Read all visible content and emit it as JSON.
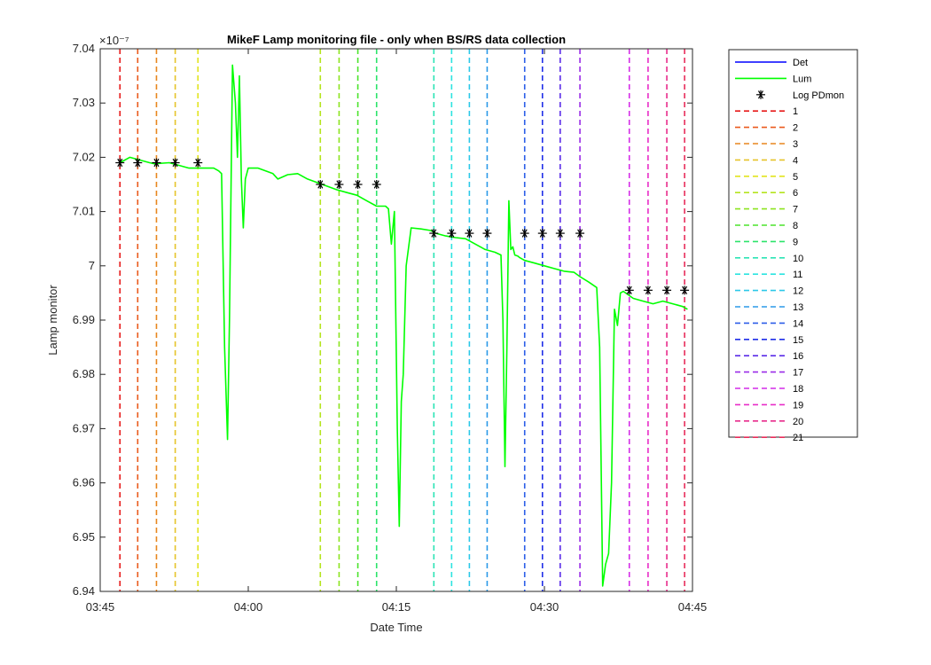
{
  "chart_data": {
    "type": "line",
    "title": "MikeF Lamp monitoring file - only when BS/RS data collection",
    "xlabel": "Date Time",
    "ylabel": "Lamp monitor",
    "exponent_label": "×10⁻⁷",
    "xlim_minutes": [
      225,
      285
    ],
    "ylim": [
      6.94,
      7.04
    ],
    "x_ticks": [
      {
        "value": 225,
        "label": "03:45"
      },
      {
        "value": 240,
        "label": "04:00"
      },
      {
        "value": 255,
        "label": "04:15"
      },
      {
        "value": 270,
        "label": "04:30"
      },
      {
        "value": 285,
        "label": "04:45"
      }
    ],
    "y_ticks": [
      {
        "value": 6.94,
        "label": "6.94"
      },
      {
        "value": 6.95,
        "label": "6.95"
      },
      {
        "value": 6.96,
        "label": "6.96"
      },
      {
        "value": 6.97,
        "label": "6.97"
      },
      {
        "value": 6.98,
        "label": "6.98"
      },
      {
        "value": 6.99,
        "label": "6.99"
      },
      {
        "value": 7.0,
        "label": "7"
      },
      {
        "value": 7.01,
        "label": "7.01"
      },
      {
        "value": 7.02,
        "label": "7.02"
      },
      {
        "value": 7.03,
        "label": "7.03"
      },
      {
        "value": 7.04,
        "label": "7.04"
      }
    ],
    "grid": false,
    "legend_position": "outside-right",
    "series": [
      {
        "name": "Det",
        "color": "#0000ff",
        "x": [],
        "y": []
      },
      {
        "name": "Lum",
        "color": "#00ff00",
        "x": [
          227.0,
          227.5,
          228.0,
          230.0,
          230.5,
          232.0,
          234.0,
          234.5,
          236.5,
          237.0,
          237.3,
          237.6,
          237.9,
          238.1,
          238.4,
          238.7,
          238.9,
          239.1,
          239.3,
          239.5,
          239.7,
          240.0,
          241.0,
          242.5,
          243.0,
          244.0,
          245.0,
          246.0,
          247.5,
          249.0,
          250.0,
          251.0,
          252.0,
          253.0,
          253.9,
          254.2,
          254.5,
          254.8,
          255.1,
          255.3,
          255.5,
          255.7,
          256.0,
          256.5,
          257.5,
          258.5,
          259.0,
          260.0,
          261.0,
          262.0,
          263.0,
          264.0,
          265.0,
          265.6,
          265.8,
          266.0,
          266.2,
          266.4,
          266.6,
          266.8,
          267.0,
          267.3,
          267.5,
          268.0,
          269.0,
          270.0,
          271.0,
          272.0,
          273.0,
          273.6,
          274.5,
          275.3,
          275.6,
          275.9,
          276.2,
          276.5,
          276.8,
          277.1,
          277.4,
          277.7,
          278.0,
          279.0,
          280.0,
          281.0,
          282.0,
          283.0,
          284.0,
          284.5
        ],
        "y": [
          7.019,
          7.0195,
          7.02,
          7.019,
          7.0188,
          7.019,
          7.018,
          7.018,
          7.018,
          7.0175,
          7.017,
          6.985,
          6.968,
          6.99,
          7.037,
          7.03,
          7.02,
          7.035,
          7.016,
          7.007,
          7.016,
          7.018,
          7.018,
          7.017,
          7.016,
          7.0168,
          7.017,
          7.016,
          7.015,
          7.014,
          7.0135,
          7.013,
          7.012,
          7.011,
          7.011,
          7.0105,
          7.004,
          7.01,
          6.97,
          6.952,
          6.975,
          6.98,
          7.0,
          7.007,
          7.0068,
          7.0065,
          7.006,
          7.0055,
          7.0052,
          7.005,
          7.004,
          7.003,
          7.0025,
          7.002,
          6.99,
          6.963,
          6.985,
          7.012,
          7.003,
          7.0035,
          7.002,
          7.0018,
          7.0015,
          7.001,
          7.0005,
          7.0,
          6.9995,
          6.999,
          6.9988,
          6.998,
          6.997,
          6.996,
          6.985,
          6.941,
          6.945,
          6.947,
          6.96,
          6.992,
          6.989,
          6.995,
          6.9953,
          6.994,
          6.9935,
          6.993,
          6.9935,
          6.993,
          6.9925,
          6.992
        ]
      },
      {
        "name": "Log PDmon",
        "color": "#000000",
        "marker": "*",
        "x": [
          227.0,
          228.8,
          230.7,
          232.6,
          234.9,
          247.3,
          249.2,
          251.1,
          253.0,
          258.8,
          260.6,
          262.4,
          264.2,
          268.0,
          269.8,
          271.6,
          273.6,
          278.6,
          280.5,
          282.4,
          284.2
        ],
        "y": [
          7.019,
          7.019,
          7.019,
          7.019,
          7.019,
          7.015,
          7.015,
          7.015,
          7.015,
          7.006,
          7.006,
          7.006,
          7.006,
          7.006,
          7.006,
          7.006,
          7.006,
          6.9955,
          6.9955,
          6.9955,
          6.9955
        ]
      }
    ],
    "vlines": [
      {
        "name": "1",
        "x": 227.0,
        "color": "#e61919"
      },
      {
        "name": "2",
        "x": 228.8,
        "color": "#ea5a1c"
      },
      {
        "name": "3",
        "x": 230.7,
        "color": "#e8861e"
      },
      {
        "name": "4",
        "x": 232.6,
        "color": "#e6c42a"
      },
      {
        "name": "5",
        "x": 234.9,
        "color": "#e2e41f"
      },
      {
        "name": "6",
        "x": 247.3,
        "color": "#b5e41f"
      },
      {
        "name": "7",
        "x": 249.2,
        "color": "#8ce41f"
      },
      {
        "name": "8",
        "x": 251.1,
        "color": "#4ce42c"
      },
      {
        "name": "9",
        "x": 253.0,
        "color": "#2ce46a"
      },
      {
        "name": "10",
        "x": 258.8,
        "color": "#2ce4b5"
      },
      {
        "name": "11",
        "x": 260.6,
        "color": "#2ce4e0"
      },
      {
        "name": "12",
        "x": 262.4,
        "color": "#2cc8e8"
      },
      {
        "name": "13",
        "x": 264.2,
        "color": "#2c9ae8"
      },
      {
        "name": "14",
        "x": 268.0,
        "color": "#2c5ee8"
      },
      {
        "name": "15",
        "x": 269.8,
        "color": "#1f2ee8"
      },
      {
        "name": "16",
        "x": 271.6,
        "color": "#5a2ce8"
      },
      {
        "name": "17",
        "x": 273.6,
        "color": "#9a2ce8"
      },
      {
        "name": "18",
        "x": 278.6,
        "color": "#d42ce8"
      },
      {
        "name": "19",
        "x": 280.5,
        "color": "#e82cc8"
      },
      {
        "name": "20",
        "x": 282.4,
        "color": "#e82c8c"
      },
      {
        "name": "21",
        "x": 284.2,
        "color": "#e82c5a"
      }
    ]
  }
}
